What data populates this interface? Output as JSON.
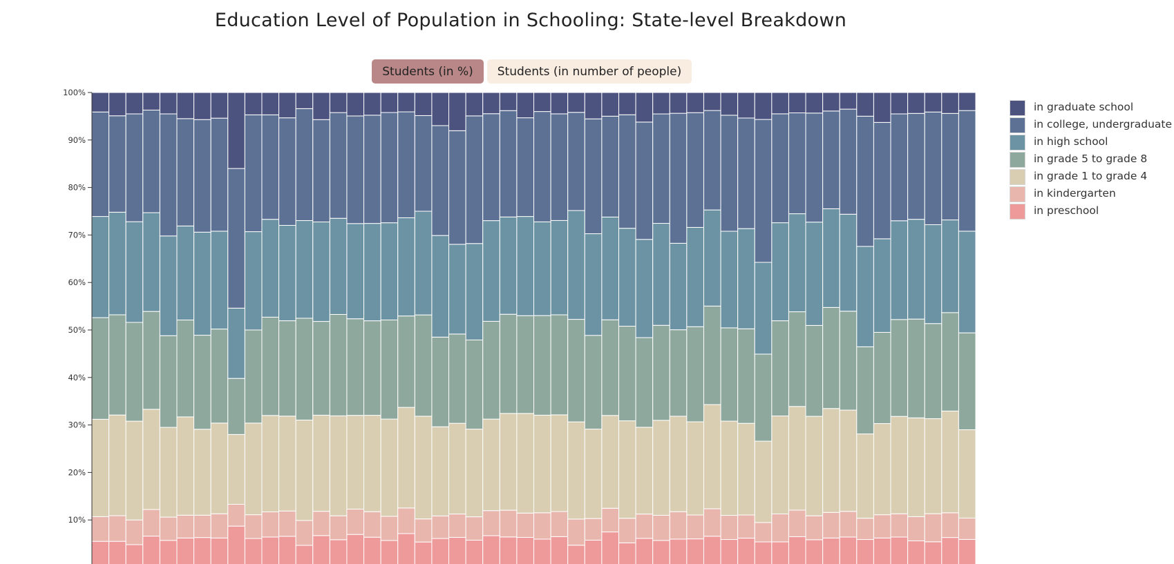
{
  "chart_data": {
    "type": "bar",
    "stacked": true,
    "normalized": true,
    "title": "Education Level of Population in Schooling: State-level Breakdown",
    "ylim": [
      0,
      100
    ],
    "yticks": [
      "10%",
      "20%",
      "30%",
      "40%",
      "50%",
      "60%",
      "70%",
      "80%",
      "90%",
      "100%"
    ],
    "legend_position": "right",
    "grid": false,
    "series": [
      {
        "name": "in preschool",
        "color": "#ef9a9a",
        "values": [
          5.5,
          5.5,
          4.8,
          6.6,
          5.7,
          6.2,
          6.3,
          6.2,
          8.7,
          6.1,
          6.4,
          6.4,
          4.8,
          6.7,
          5.8,
          6.9,
          6.4,
          5.8,
          7.0,
          5.4,
          6.3,
          6.3,
          5.6,
          6.6,
          6.4,
          6.3,
          5.8,
          6.5,
          4.6,
          5.8,
          7.5,
          5.2,
          6.1,
          5.8,
          6.0,
          6.1,
          6.6,
          5.9,
          6.2,
          5.4,
          5.4,
          6.5,
          5.8,
          6.2,
          6.4,
          5.9,
          6.2,
          6.4,
          5.6,
          5.4,
          6.3,
          5.9
        ]
      },
      {
        "name": "in kindergarten",
        "color": "#e9b6ae",
        "values": [
          5.2,
          5.4,
          5.2,
          5.6,
          4.9,
          4.8,
          4.7,
          5.1,
          4.6,
          5.0,
          5.3,
          5.2,
          5.4,
          5.1,
          5.0,
          5.3,
          5.4,
          5.2,
          5.3,
          4.9,
          4.9,
          4.9,
          4.8,
          5.2,
          5.6,
          5.1,
          5.4,
          5.3,
          5.4,
          4.6,
          5.0,
          5.2,
          5.1,
          5.4,
          5.8,
          5.1,
          5.8,
          5.1,
          4.9,
          4.1,
          5.9,
          5.6,
          5.0,
          5.4,
          5.4,
          4.5,
          4.9,
          4.9,
          5.1,
          5.9,
          5.2,
          4.5
        ]
      },
      {
        "name": "in grade 1 to grade 4",
        "color": "#d9ceb2",
        "values": [
          20.5,
          21.2,
          20.8,
          21.1,
          18.9,
          20.7,
          18.1,
          19.1,
          14.7,
          19.3,
          20.3,
          19.5,
          21.8,
          20.2,
          20.9,
          19.6,
          20.4,
          20.9,
          20.8,
          21.8,
          19.4,
          19.0,
          18.0,
          19.0,
          20.3,
          20.9,
          20.0,
          20.4,
          20.1,
          19.0,
          19.6,
          20.6,
          18.2,
          20.4,
          20.2,
          19.9,
          22.0,
          19.9,
          19.4,
          17.2,
          20.7,
          21.9,
          20.8,
          21.9,
          21.3,
          17.8,
          19.2,
          20.5,
          20.8,
          20.0,
          21.4,
          18.6
        ]
      },
      {
        "name": "in grade 5 to grade 8",
        "color": "#8ea89d",
        "values": [
          21.4,
          21.1,
          20.8,
          20.6,
          19.3,
          20.4,
          19.8,
          19.8,
          11.8,
          19.6,
          20.7,
          19.6,
          22.1,
          19.7,
          21.2,
          20.2,
          20.0,
          21.3,
          18.9,
          21.5,
          19.5,
          18.7,
          18.3,
          20.3,
          20.8,
          20.5,
          20.4,
          21.1,
          21.2,
          19.9,
          20.2,
          20.0,
          18.8,
          20.4,
          18.3,
          20.3,
          20.8,
          19.7,
          20.0,
          18.4,
          20.1,
          20.0,
          19.0,
          21.3,
          20.8,
          18.4,
          19.2,
          20.4,
          20.8,
          20.0,
          20.7,
          20.4
        ]
      },
      {
        "name": "in high school",
        "color": "#6c93a3",
        "values": [
          21.3,
          21.6,
          21.2,
          20.8,
          21.0,
          19.8,
          21.7,
          20.6,
          14.8,
          20.7,
          20.6,
          19.6,
          21.2,
          20.9,
          20.1,
          19.9,
          20.6,
          20.9,
          20.3,
          22.0,
          22.1,
          18.8,
          19.8,
          20.9,
          20.4,
          20.8,
          19.2,
          19.9,
          22.5,
          21.6,
          21.7,
          20.7,
          20.6,
          21.9,
          18.3,
          21.2,
          20.3,
          20.4,
          21.2,
          19.4,
          20.7,
          20.7,
          21.6,
          20.8,
          20.4,
          21.2,
          19.7,
          20.8,
          21.0,
          20.8,
          19.5,
          21.4
        ]
      },
      {
        "name": "in college, undergraduate",
        "color": "#5d7194",
        "values": [
          22.0,
          20.3,
          22.7,
          21.6,
          25.7,
          22.6,
          23.7,
          23.8,
          29.4,
          24.6,
          22.0,
          22.1,
          24.3,
          21.5,
          22.1,
          22.5,
          22.9,
          23.7,
          21.9,
          20.3,
          23.9,
          23.8,
          26.2,
          22.2,
          22.3,
          20.7,
          22.6,
          22.5,
          20.3,
          24.4,
          21.3,
          24.0,
          24.6,
          23.5,
          27.5,
          24.5,
          21.0,
          24.5,
          23.4,
          30.2,
          23.0,
          21.3,
          22.8,
          20.6,
          22.1,
          27.5,
          24.5,
          22.5,
          22.3,
          23.7,
          22.4,
          25.4
        ]
      },
      {
        "name": "in graduate school",
        "color": "#4c537f",
        "values": [
          4.1,
          4.9,
          4.5,
          3.7,
          4.5,
          5.5,
          5.7,
          5.4,
          16.0,
          4.7,
          4.7,
          5.2,
          3.5,
          5.7,
          4.2,
          4.9,
          4.8,
          4.3,
          4.0,
          4.9,
          7.2,
          8.0,
          4.8,
          4.4,
          3.8,
          5.3,
          3.9,
          4.5,
          4.1,
          5.6,
          5.0,
          4.7,
          6.2,
          4.6,
          4.4,
          4.3,
          3.8,
          4.8,
          5.4,
          5.7,
          4.5,
          4.3,
          4.3,
          3.9,
          3.5,
          5.0,
          6.3,
          4.5,
          4.4,
          4.1,
          4.4,
          3.8
        ]
      }
    ]
  },
  "toggles": {
    "percent_label": "Students (in %)",
    "count_label": "Students (in number of people)"
  }
}
